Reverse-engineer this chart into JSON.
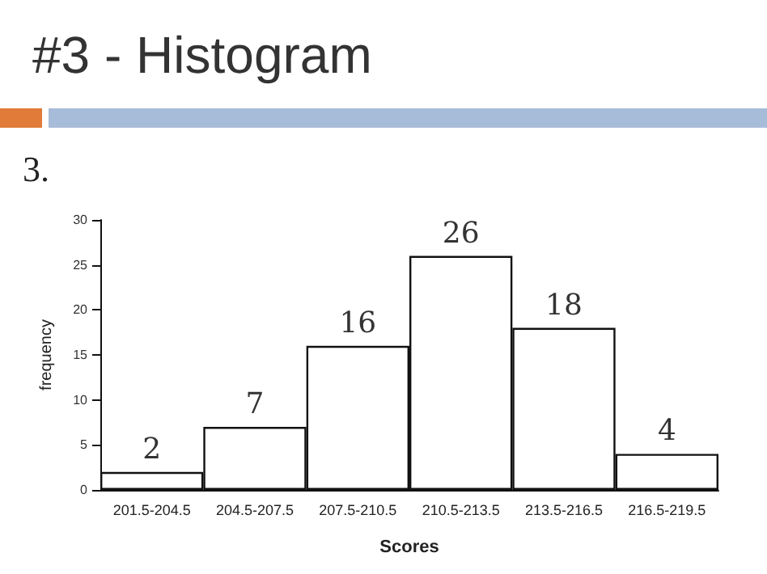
{
  "chart_data": {
    "type": "bar",
    "title": "#3 - Histogram",
    "annotations": [
      "3."
    ],
    "xlabel": "Scores",
    "ylabel": "frequency",
    "categories": [
      "201.5-204.5",
      "204.5-207.5",
      "207.5-210.5",
      "210.5-213.5",
      "213.5-216.5",
      "216.5-219.5"
    ],
    "values": [
      2,
      7,
      16,
      26,
      18,
      4
    ],
    "color": "#ffffff",
    "ylim": [
      0,
      30
    ],
    "yticks": [
      0,
      5,
      10,
      15,
      20,
      25,
      30
    ],
    "grid": false,
    "data_labels": true
  }
}
